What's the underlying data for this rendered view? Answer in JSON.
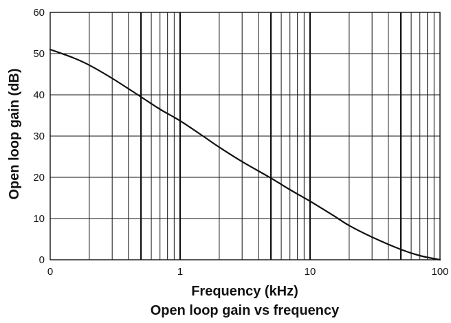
{
  "chart_data": {
    "type": "line",
    "title": "Open loop gain vs frequency",
    "xlabel": "Frequency (kHz)",
    "ylabel": "Open loop gain (dB)",
    "x_scale": "log",
    "xlim": [
      0.1,
      100
    ],
    "ylim": [
      0,
      60
    ],
    "grid": true,
    "x_ticks": [
      {
        "value": 0.1,
        "label": "0"
      },
      {
        "value": 1,
        "label": "1"
      },
      {
        "value": 10,
        "label": "10"
      },
      {
        "value": 100,
        "label": "100"
      }
    ],
    "y_ticks": [
      {
        "value": 0,
        "label": "0"
      },
      {
        "value": 10,
        "label": "10"
      },
      {
        "value": 20,
        "label": "20"
      },
      {
        "value": 30,
        "label": "30"
      },
      {
        "value": 40,
        "label": "40"
      },
      {
        "value": 50,
        "label": "50"
      },
      {
        "value": 60,
        "label": "60"
      }
    ],
    "series": [
      {
        "x": [
          0.1,
          0.15,
          0.2,
          0.3,
          0.5,
          0.7,
          1,
          1.5,
          2,
          3,
          5,
          7,
          10,
          15,
          20,
          30,
          50,
          70,
          100
        ],
        "y": [
          51,
          49,
          47.2,
          44,
          39.5,
          36.5,
          33.7,
          30,
          27.3,
          23.8,
          19.8,
          17,
          14.2,
          10.8,
          8.3,
          5.5,
          2.5,
          1,
          0
        ]
      }
    ]
  }
}
